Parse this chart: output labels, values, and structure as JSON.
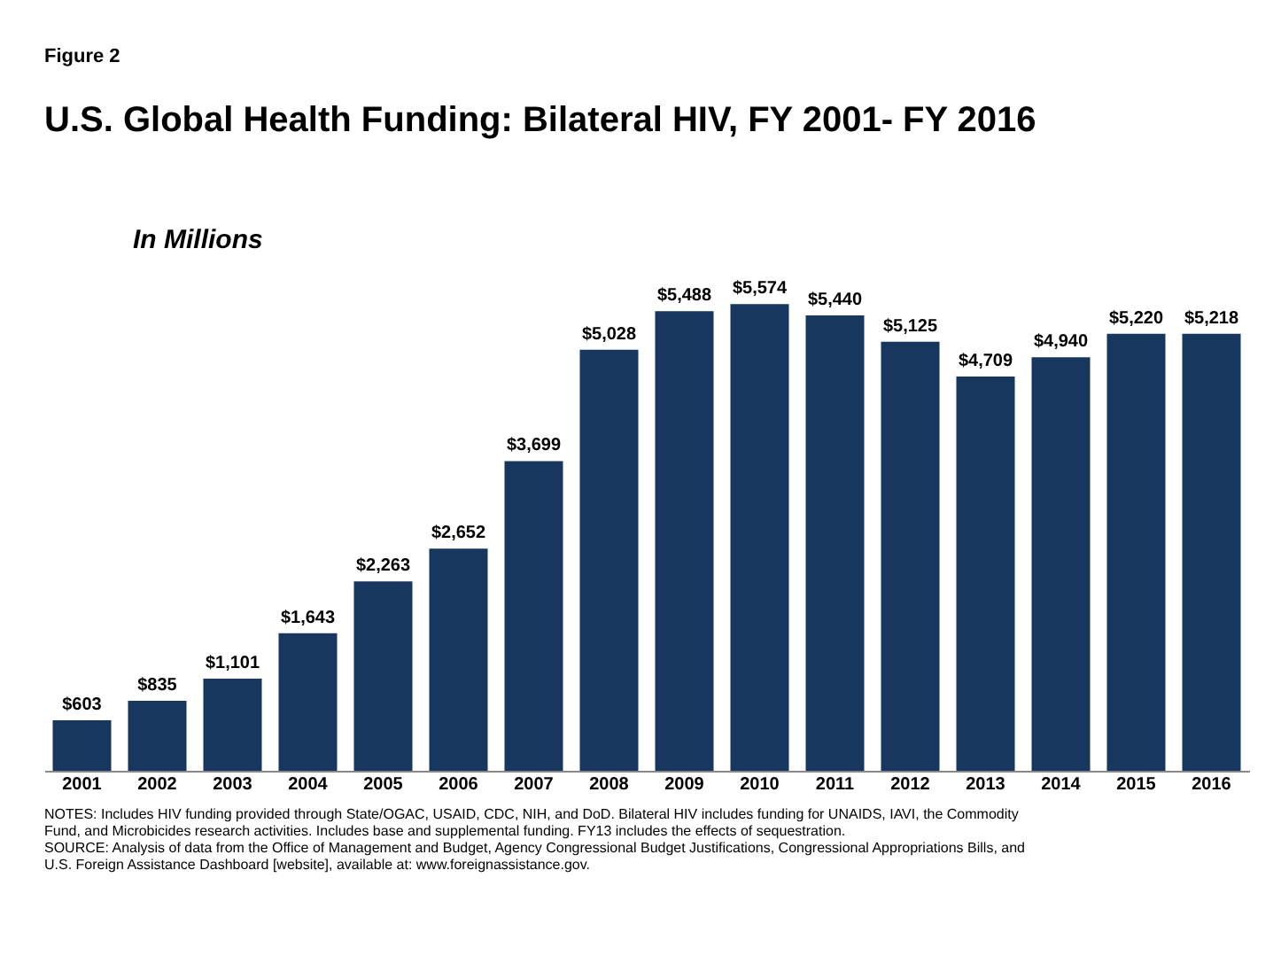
{
  "chart_data": {
    "type": "bar",
    "title": "U.S. Global Health Funding: Bilateral HIV, FY 2001- FY 2016",
    "ylabel": "In Millions",
    "categories": [
      "2001",
      "2002",
      "2003",
      "2004",
      "2005",
      "2006",
      "2007",
      "2008",
      "2009",
      "2010",
      "2011",
      "2012",
      "2013",
      "2014",
      "2015",
      "2016"
    ],
    "values": [
      603,
      835,
      1101,
      1643,
      2263,
      2652,
      3699,
      5028,
      5488,
      5574,
      5440,
      5125,
      4709,
      4940,
      5220,
      5218
    ],
    "value_labels": [
      "$603",
      "$835",
      "$1,101",
      "$1,643",
      "$2,263",
      "$2,652",
      "$3,699",
      "$5,028",
      "$5,488",
      "$5,574",
      "$5,440",
      "$5,125",
      "$4,709",
      "$4,940",
      "$5,220",
      "$5,218"
    ],
    "color": "#17375e",
    "grid": false,
    "annotations": [
      "Figure 2",
      "NOTES: Includes HIV funding provided through State/OGAC, USAID, CDC, NIH, and DoD. Bilateral HIV includes funding for UNAIDS, IAVI, the Commodity Fund, and Microbicides research activities. Includes base and supplemental funding. FY13 includes the effects of sequestration.",
      "SOURCE: Analysis of data from the Office of Management and Budget, Agency Congressional Budget Justifications, Congressional Appropriations Bills, and U.S. Foreign Assistance Dashboard [website], available at: www.foreignassistance.gov."
    ]
  }
}
